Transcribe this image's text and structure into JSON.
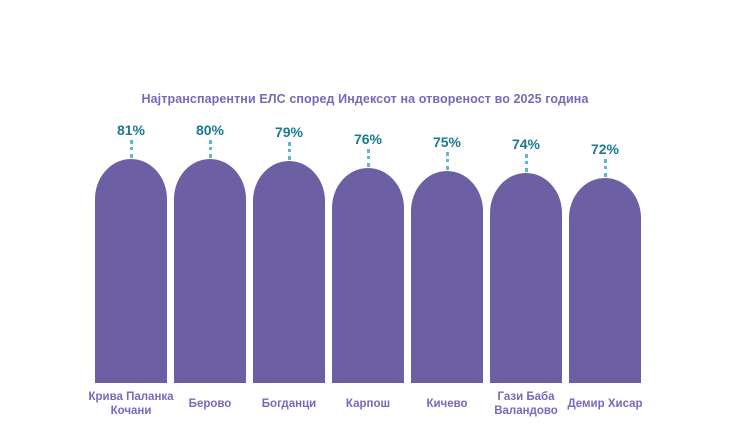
{
  "page": {
    "background": "#ffffff"
  },
  "chart_data": {
    "type": "bar",
    "title": "Најтранспарентни ЕЛС според Индексот на отвореност во 2025 година",
    "unit": "%",
    "categories": [
      "Крива Паланка Кочани",
      "Берово",
      "Богданци",
      "Карпош",
      "Кичево",
      "Гази Баба Валандово",
      "Демир Хисар"
    ],
    "category_lines": [
      [
        "Крива Паланка",
        "Кочани"
      ],
      [
        "Берово"
      ],
      [
        "Богданци"
      ],
      [
        "Карпош"
      ],
      [
        "Кичево"
      ],
      [
        "Гази Баба",
        "Валандово"
      ],
      [
        "Демир Хисар"
      ]
    ],
    "values": [
      81,
      80,
      79,
      76,
      75,
      74,
      72
    ],
    "value_labels": [
      "81%",
      "80%",
      "79%",
      "76%",
      "75%",
      "74%",
      "72%"
    ],
    "ylim": [
      0,
      100
    ],
    "grid": false,
    "legend": "none",
    "colors": {
      "bar": "#6c5fa3",
      "title_text": "#7a68ba",
      "category_text": "#7a68ba",
      "value_text": "#1b7a8e",
      "leader_dots": "#5fb8cb"
    }
  }
}
